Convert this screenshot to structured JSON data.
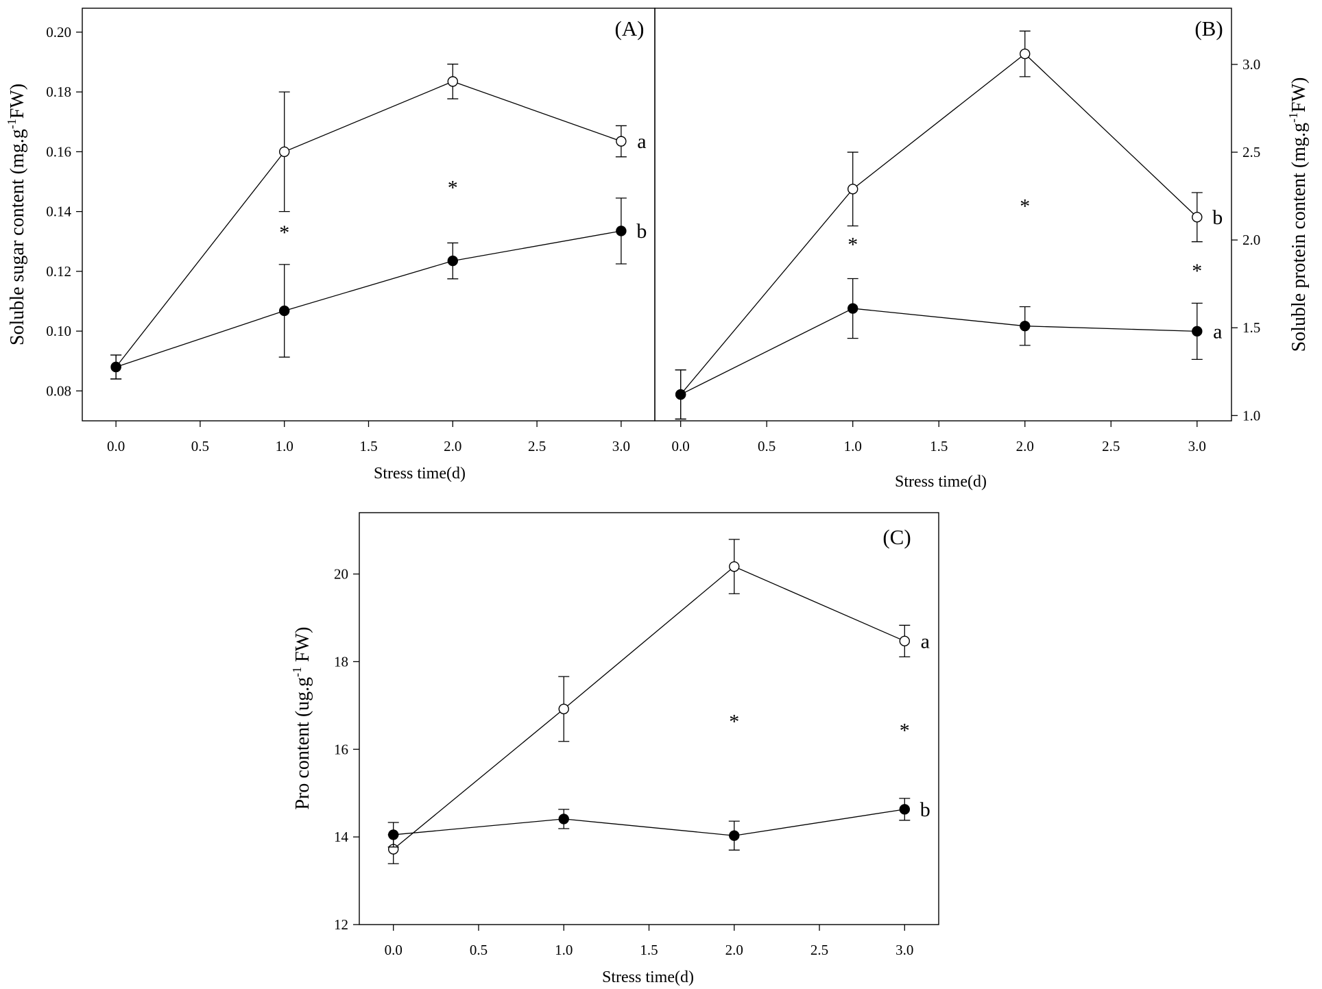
{
  "chart_data": [
    {
      "panel_label": "(A)",
      "type": "line",
      "xlabel": "Stress time(d)",
      "ylabel": "Soluble sugar content  (mg.g",
      "ylabel_sup": "-1",
      "ylabel_tail": "FW)",
      "xlim": [
        -0.2,
        3.2
      ],
      "ylim": [
        0.07,
        0.208
      ],
      "xticks": [
        "0.0",
        "0.5",
        "1.0",
        "1.5",
        "2.0",
        "2.5",
        "3.0"
      ],
      "xtick_values": [
        0,
        0.5,
        1,
        1.5,
        2,
        2.5,
        3
      ],
      "yticks": [
        "0.08",
        "0.10",
        "0.12",
        "0.14",
        "0.16",
        "0.18",
        "0.20"
      ],
      "ytick_values": [
        0.08,
        0.1,
        0.12,
        0.14,
        0.16,
        0.18,
        0.2
      ],
      "series": [
        {
          "name": "open",
          "marker": "open",
          "x": [
            0,
            1,
            2,
            3
          ],
          "values": [
            0.088,
            0.16,
            0.1835,
            0.1635
          ],
          "err": [
            0.004,
            0.02,
            0.0058,
            0.0052
          ],
          "group_label": "a"
        },
        {
          "name": "filled",
          "marker": "filled",
          "x": [
            0,
            1,
            2,
            3
          ],
          "values": [
            0.088,
            0.1068,
            0.1235,
            0.1335
          ],
          "err": [
            0.004,
            0.0155,
            0.006,
            0.011
          ],
          "group_label": "b"
        }
      ],
      "significance": [
        {
          "x": 1,
          "y": 0.134,
          "text": "*"
        },
        {
          "x": 2,
          "y": 0.149,
          "text": "*"
        }
      ]
    },
    {
      "panel_label": "(B)",
      "type": "line",
      "xlabel": "Stress time(d)",
      "ylabel": "Soluble protein content  (mg.g",
      "ylabel_sup": "-1",
      "ylabel_tail": "FW)",
      "xlim": [
        -0.15,
        3.2
      ],
      "ylim": [
        0.97,
        3.32
      ],
      "xticks": [
        "0.0",
        "0.5",
        "1.0",
        "1.5",
        "2.0",
        "2.5",
        "3.0"
      ],
      "xtick_values": [
        0,
        0.5,
        1,
        1.5,
        2,
        2.5,
        3
      ],
      "yticks": [
        "1.0",
        "1.5",
        "2.0",
        "2.5",
        "3.0"
      ],
      "ytick_values": [
        1.0,
        1.5,
        2.0,
        2.5,
        3.0
      ],
      "series": [
        {
          "name": "open",
          "marker": "open",
          "x": [
            0,
            1,
            2,
            3
          ],
          "values": [
            1.12,
            2.29,
            3.06,
            2.13
          ],
          "err": [
            0.14,
            0.21,
            0.13,
            0.14
          ],
          "group_label": "b"
        },
        {
          "name": "filled",
          "marker": "filled",
          "x": [
            0,
            1,
            2,
            3
          ],
          "values": [
            1.12,
            1.61,
            1.51,
            1.48
          ],
          "err": [
            0.14,
            0.17,
            0.11,
            0.16
          ],
          "group_label": "a"
        }
      ],
      "significance": [
        {
          "x": 1,
          "y": 1.99,
          "text": "*"
        },
        {
          "x": 2,
          "y": 2.21,
          "text": "*"
        },
        {
          "x": 3,
          "y": 1.84,
          "text": "*"
        }
      ]
    },
    {
      "panel_label": "(C)",
      "type": "line",
      "xlabel": "Stress time(d)",
      "ylabel": "Pro content (ug.g",
      "ylabel_sup": "-1",
      "ylabel_tail": " FW)",
      "xlim": [
        -0.2,
        3.2
      ],
      "ylim": [
        12,
        21.4
      ],
      "xticks": [
        "0.0",
        "0.5",
        "1.0",
        "1.5",
        "2.0",
        "2.5",
        "3.0"
      ],
      "xtick_values": [
        0,
        0.5,
        1,
        1.5,
        2,
        2.5,
        3
      ],
      "yticks": [
        "12",
        "14",
        "16",
        "18",
        "20"
      ],
      "ytick_values": [
        12,
        14,
        16,
        18,
        20
      ],
      "series": [
        {
          "name": "open",
          "marker": "open",
          "x": [
            0,
            1,
            2,
            3
          ],
          "values": [
            13.72,
            16.92,
            20.17,
            18.47
          ],
          "err": [
            0.33,
            0.74,
            0.62,
            0.36
          ],
          "group_label": "a"
        },
        {
          "name": "filled",
          "marker": "filled",
          "x": [
            0,
            1,
            2,
            3
          ],
          "values": [
            14.05,
            14.41,
            14.03,
            14.63
          ],
          "err": [
            0.28,
            0.22,
            0.33,
            0.25
          ],
          "group_label": "b"
        }
      ],
      "significance": [
        {
          "x": 2,
          "y": 16.7,
          "text": "*"
        },
        {
          "x": 3,
          "y": 16.5,
          "text": "*"
        }
      ]
    }
  ]
}
